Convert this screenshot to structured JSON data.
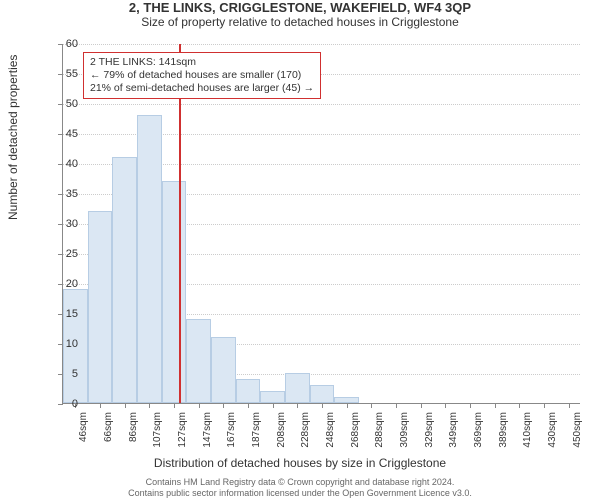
{
  "header": {
    "title": "2, THE LINKS, CRIGGLESTONE, WAKEFIELD, WF4 3QP",
    "subtitle": "Size of property relative to detached houses in Crigglestone"
  },
  "chart": {
    "type": "histogram",
    "ylabel": "Number of detached properties",
    "xlabel": "Distribution of detached houses by size in Crigglestone",
    "ylim": [
      0,
      60
    ],
    "ytick_step": 5,
    "xcategories": [
      "46sqm",
      "66sqm",
      "86sqm",
      "107sqm",
      "127sqm",
      "147sqm",
      "167sqm",
      "187sqm",
      "208sqm",
      "228sqm",
      "248sqm",
      "268sqm",
      "288sqm",
      "309sqm",
      "329sqm",
      "349sqm",
      "369sqm",
      "389sqm",
      "410sqm",
      "430sqm",
      "450sqm"
    ],
    "values": [
      19,
      32,
      41,
      48,
      37,
      14,
      11,
      4,
      2,
      5,
      3,
      1,
      0,
      0,
      0,
      0,
      0,
      0,
      0,
      0,
      0
    ],
    "bar_color": "#dbe7f3",
    "bar_border": "#b7cde4",
    "grid_color": "#cccccc",
    "axis_color": "#888888",
    "background_color": "#ffffff",
    "reference": {
      "position_index": 4.7,
      "color": "#d03030"
    },
    "annotation": {
      "line1": "2 THE LINKS: 141sqm",
      "line2": "← 79% of detached houses are smaller (170)",
      "line3": "21% of semi-detached houses are larger (45) →",
      "border_color": "#d03030"
    }
  },
  "footer": {
    "line1": "Contains HM Land Registry data © Crown copyright and database right 2024.",
    "line2": "Contains public sector information licensed under the Open Government Licence v3.0."
  }
}
